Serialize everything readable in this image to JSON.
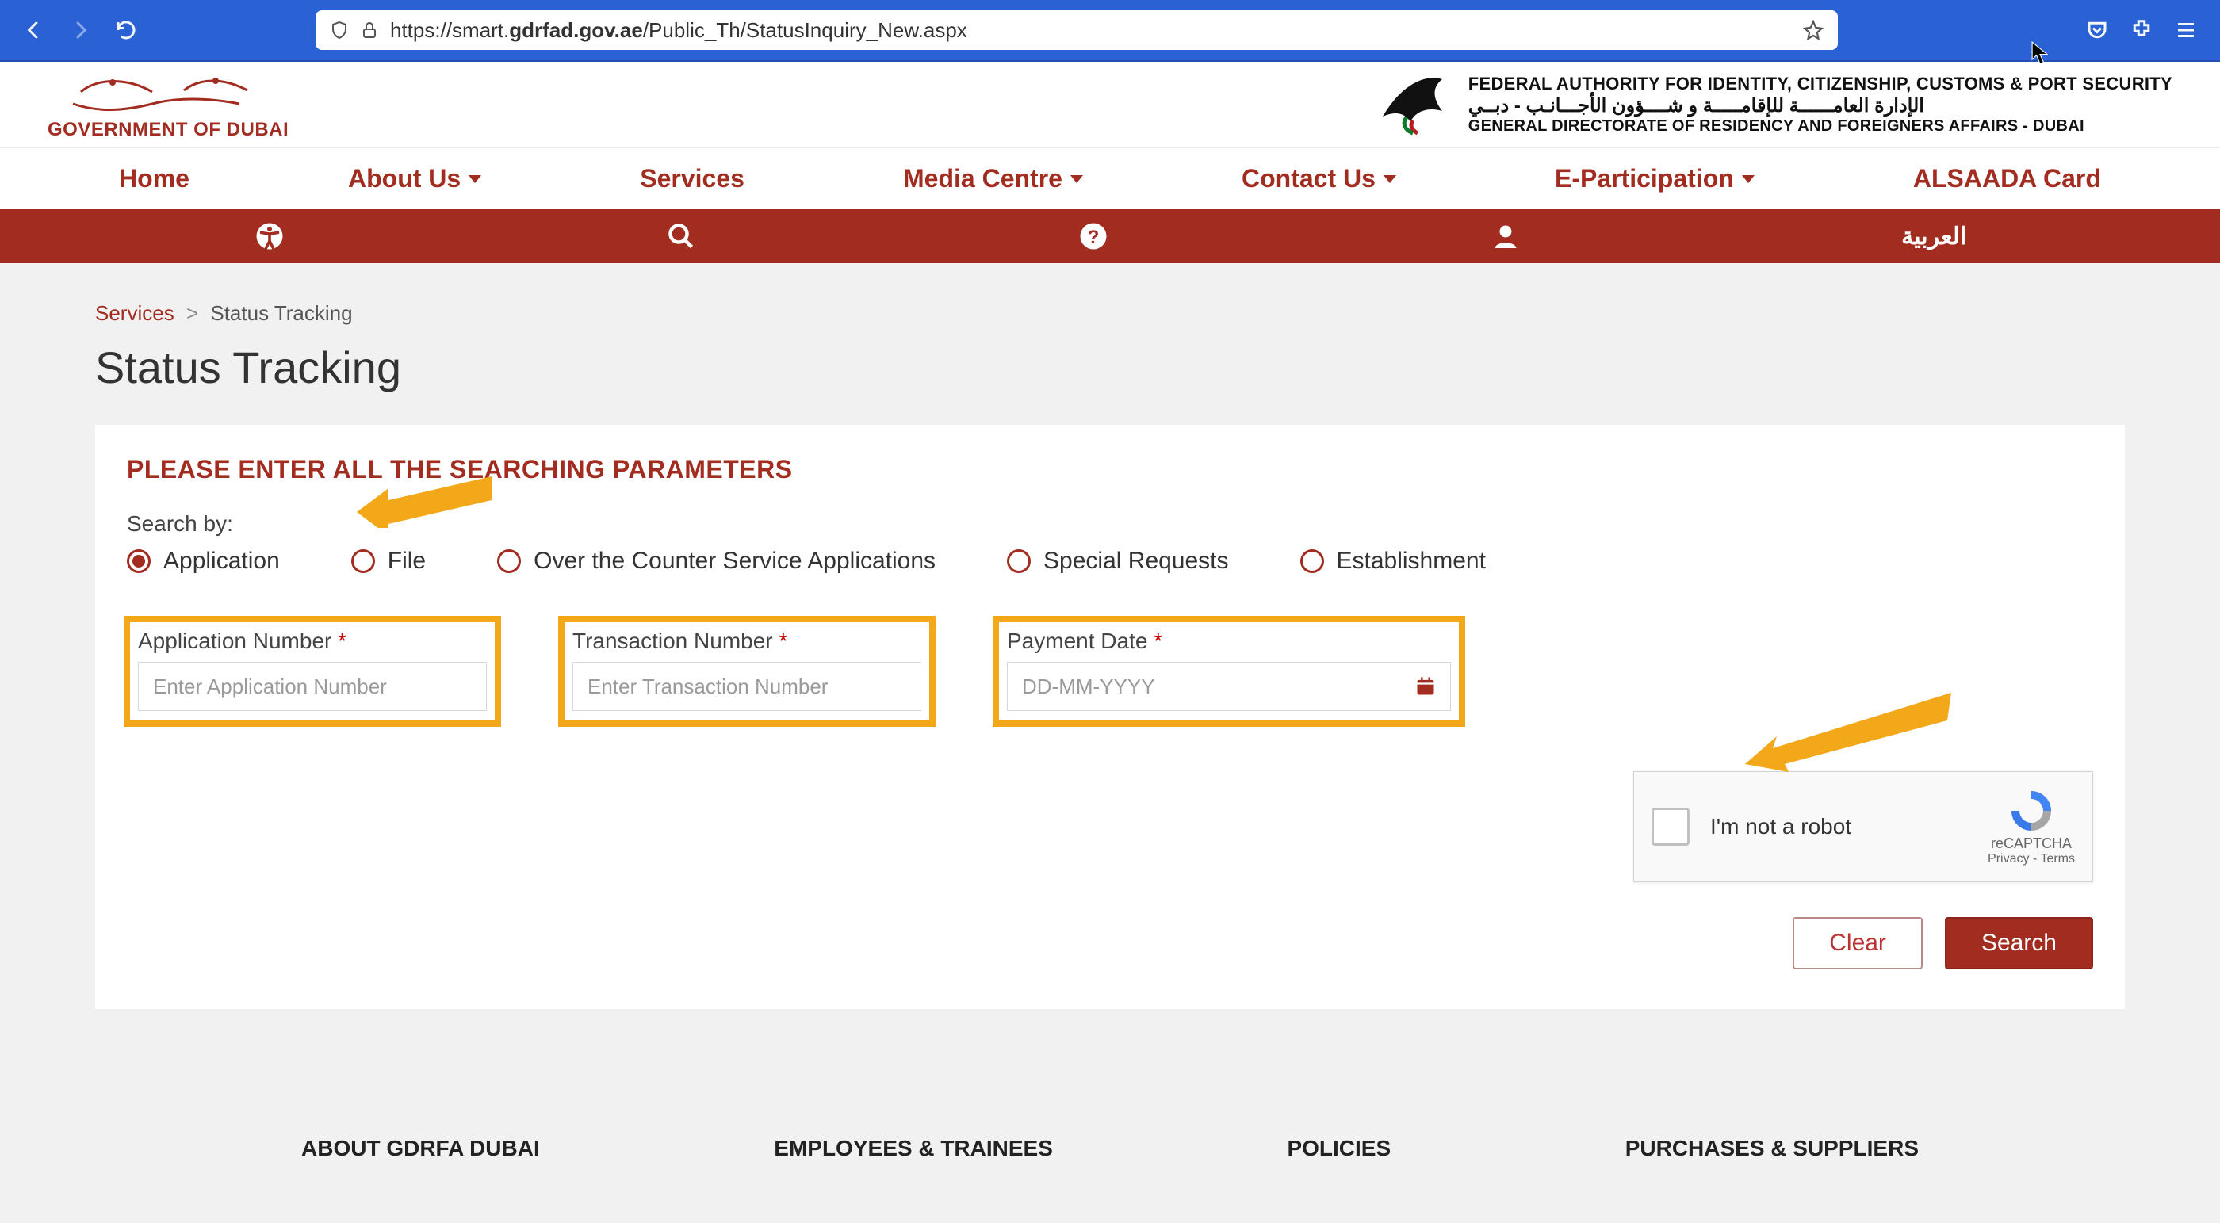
{
  "browser": {
    "url_prefix": "https://smart.",
    "url_domain": "gdrfad.gov.ae",
    "url_path": "/Public_Th/StatusInquiry_New.aspx"
  },
  "logos": {
    "gov_name": "GOVERNMENT OF DUBAI",
    "auth_line1": "FEDERAL AUTHORITY FOR IDENTITY, CITIZENSHIP, CUSTOMS & PORT SECURITY",
    "auth_line2": "الإدارة العامــــــة للإقامـــــة و شــــؤون الأجـــانـب - دبــي",
    "auth_line3": "GENERAL DIRECTORATE OF RESIDENCY AND FOREIGNERS AFFAIRS - DUBAI"
  },
  "nav": {
    "items": [
      {
        "label": "Home",
        "dropdown": false
      },
      {
        "label": "About Us",
        "dropdown": true
      },
      {
        "label": "Services",
        "dropdown": false
      },
      {
        "label": "Media Centre",
        "dropdown": true
      },
      {
        "label": "Contact Us",
        "dropdown": true
      },
      {
        "label": "E-Participation",
        "dropdown": true
      },
      {
        "label": "ALSAADA Card",
        "dropdown": false
      }
    ],
    "lang_label": "العربية"
  },
  "breadcrumb": {
    "root": "Services",
    "sep": ">",
    "current": "Status Tracking"
  },
  "page": {
    "title": "Status Tracking",
    "card_head": "PLEASE ENTER ALL THE SEARCHING PARAMETERS",
    "searchby_label": "Search by:",
    "radios": [
      {
        "label": "Application",
        "selected": true
      },
      {
        "label": "File",
        "selected": false
      },
      {
        "label": "Over the Counter Service Applications",
        "selected": false
      },
      {
        "label": "Special Requests",
        "selected": false
      },
      {
        "label": "Establishment",
        "selected": false
      }
    ],
    "fields": {
      "app_no": {
        "label": "Application Number",
        "placeholder": "Enter Application Number"
      },
      "txn_no": {
        "label": "Transaction Number",
        "placeholder": "Enter Transaction Number"
      },
      "pay_date": {
        "label": "Payment Date",
        "placeholder": "DD-MM-YYYY"
      }
    },
    "recaptcha": {
      "label": "I'm not a robot",
      "brand": "reCAPTCHA",
      "privacy": "Privacy",
      "terms": "Terms"
    },
    "buttons": {
      "clear": "Clear",
      "search": "Search"
    }
  },
  "footer": {
    "cols": [
      "ABOUT GDRFA DUBAI",
      "EMPLOYEES & TRAINEES",
      "POLICIES",
      "PURCHASES & SUPPLIERS"
    ]
  },
  "style": {
    "colors": {
      "brand": "#a22c20",
      "brand_dark": "#8e251a",
      "blue": "#2a62d6",
      "highlight": "#f3a81a",
      "border": "#d8d8d8",
      "page_bg": "#f1f1f1"
    }
  }
}
